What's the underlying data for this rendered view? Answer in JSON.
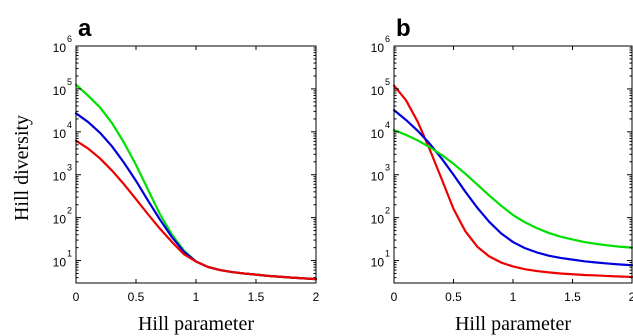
{
  "chart_data": [
    {
      "type": "line",
      "panel_label": "a",
      "xlabel": "Hill parameter",
      "ylabel": "Hill diversity",
      "y_scale": "log",
      "xlim": [
        0,
        2
      ],
      "ylim": [
        3,
        1000000
      ],
      "x_ticks": [
        "0",
        "0.5",
        "1",
        "1.5",
        "2"
      ],
      "y_ticks": [
        {
          "base": "10",
          "exp": "1"
        },
        {
          "base": "10",
          "exp": "2"
        },
        {
          "base": "10",
          "exp": "3"
        },
        {
          "base": "10",
          "exp": "4"
        },
        {
          "base": "10",
          "exp": "5"
        },
        {
          "base": "10",
          "exp": "6"
        }
      ],
      "grid": false,
      "x": [
        0,
        0.1,
        0.2,
        0.3,
        0.4,
        0.5,
        0.6,
        0.7,
        0.8,
        0.9,
        1.0,
        1.1,
        1.2,
        1.3,
        1.4,
        1.5,
        1.6,
        1.7,
        1.8,
        1.9,
        2.0
      ],
      "series": [
        {
          "color": "#00e000",
          "values": [
            125000,
            70000,
            37000,
            16000,
            5600,
            1700,
            450,
            120,
            40,
            17,
            9.5,
            7.1,
            6.0,
            5.4,
            5.0,
            4.7,
            4.4,
            4.2,
            4.0,
            3.85,
            3.7
          ]
        },
        {
          "color": "#0000dd",
          "values": [
            27000,
            17000,
            9500,
            4600,
            1900,
            720,
            250,
            90,
            35,
            16,
            9.5,
            7.1,
            6.0,
            5.4,
            5.0,
            4.7,
            4.4,
            4.2,
            4.0,
            3.85,
            3.7
          ]
        },
        {
          "color": "#ee0000",
          "values": [
            6200,
            4100,
            2400,
            1250,
            600,
            270,
            120,
            55,
            27,
            14,
            9.5,
            7.1,
            6.0,
            5.4,
            5.0,
            4.7,
            4.4,
            4.2,
            4.0,
            3.85,
            3.7
          ]
        }
      ]
    },
    {
      "type": "line",
      "panel_label": "b",
      "xlabel": "Hill parameter",
      "ylabel": "",
      "y_scale": "log",
      "xlim": [
        0,
        2
      ],
      "ylim": [
        3,
        1000000
      ],
      "x_ticks": [
        "0",
        "0.5",
        "1",
        "1.5",
        "2"
      ],
      "y_ticks": [
        {
          "base": "10",
          "exp": "1"
        },
        {
          "base": "10",
          "exp": "2"
        },
        {
          "base": "10",
          "exp": "3"
        },
        {
          "base": "10",
          "exp": "4"
        },
        {
          "base": "10",
          "exp": "5"
        },
        {
          "base": "10",
          "exp": "6"
        }
      ],
      "grid": false,
      "x": [
        0,
        0.1,
        0.2,
        0.3,
        0.4,
        0.5,
        0.6,
        0.7,
        0.8,
        0.9,
        1.0,
        1.1,
        1.2,
        1.3,
        1.4,
        1.5,
        1.6,
        1.7,
        1.8,
        1.9,
        2.0
      ],
      "series": [
        {
          "color": "#ee0000",
          "values": [
            120000,
            55000,
            17000,
            3900,
            800,
            160,
            48,
            21,
            12.5,
            9.0,
            7.3,
            6.3,
            5.7,
            5.3,
            5.0,
            4.8,
            4.6,
            4.5,
            4.35,
            4.25,
            4.15
          ]
        },
        {
          "color": "#0000dd",
          "values": [
            32000,
            19000,
            10500,
            5300,
            2400,
            1000,
            400,
            170,
            80,
            43,
            27,
            19.5,
            15.5,
            13,
            11.5,
            10.5,
            9.6,
            9.0,
            8.5,
            8.1,
            7.8
          ]
        },
        {
          "color": "#00e000",
          "values": [
            11000,
            8500,
            6300,
            4400,
            2900,
            1800,
            1050,
            590,
            330,
            190,
            115,
            78,
            57,
            44,
            36,
            31,
            27,
            24.5,
            22.5,
            21,
            20
          ]
        }
      ]
    }
  ]
}
